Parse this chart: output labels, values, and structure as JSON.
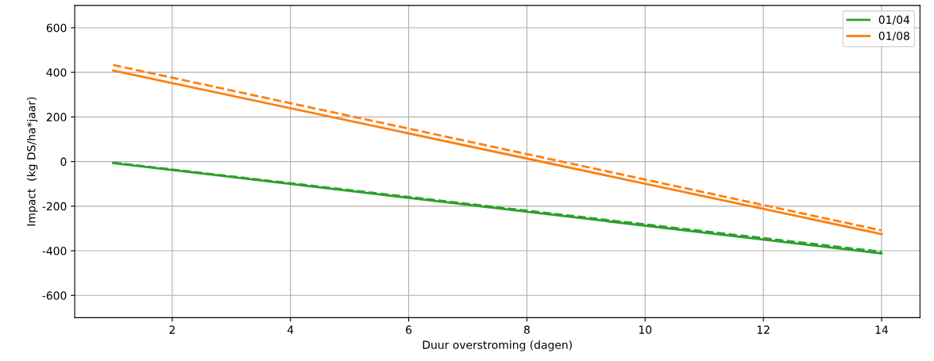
{
  "chart_data": {
    "type": "line",
    "xlabel": "Duur overstroming (dagen)",
    "ylabel": "Impact  (kg DS/ha*jaar)",
    "xlim": [
      0.35,
      14.65
    ],
    "xticks": [
      2,
      4,
      6,
      8,
      10,
      12,
      14
    ],
    "ylim": [
      -700,
      700
    ],
    "yticks": [
      -600,
      -400,
      -200,
      0,
      200,
      400,
      600
    ],
    "grid": true,
    "legend": "top right",
    "marker": "none",
    "x": [
      1,
      14
    ],
    "series": [
      {
        "name": "01/04",
        "color": "#2ca02c",
        "values": [
          -7,
          -412
        ],
        "line_style": "solid"
      },
      {
        "name": "01/08",
        "color": "#ff7f0e",
        "values": [
          408,
          -325
        ],
        "line_style": "solid"
      },
      {
        "color": "#2ca02c",
        "values": [
          -5,
          -405
        ],
        "line_style": "dashed"
      },
      {
        "color": "#ff7f0e",
        "values": [
          433,
          -309
        ],
        "line_style": "dashed"
      }
    ]
  }
}
